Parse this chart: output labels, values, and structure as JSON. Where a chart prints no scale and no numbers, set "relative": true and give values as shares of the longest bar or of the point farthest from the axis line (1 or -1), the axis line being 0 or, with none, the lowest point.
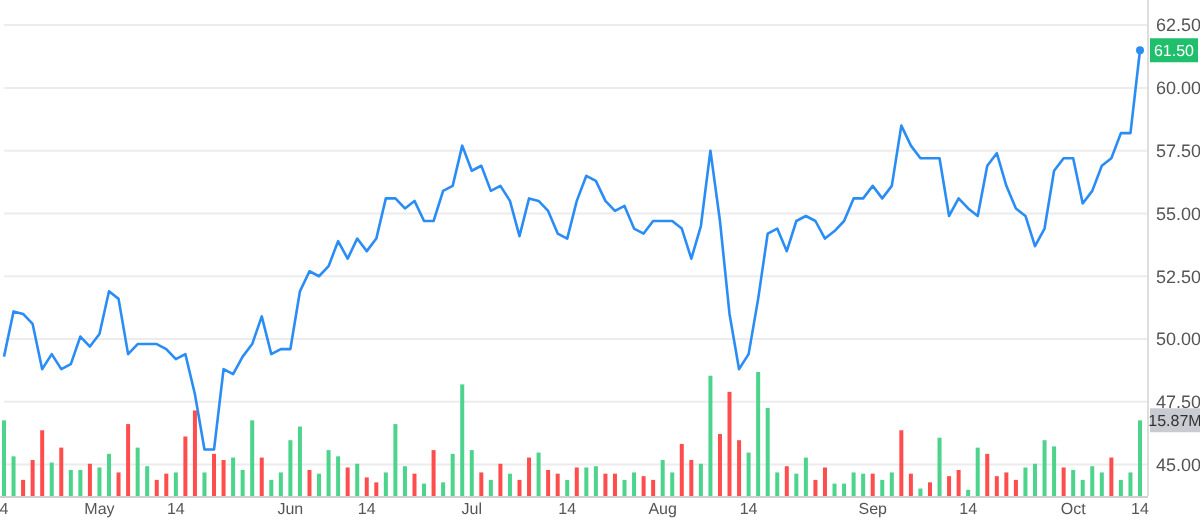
{
  "chart_data": [
    {
      "type": "line",
      "categories": [
        "4",
        null,
        null,
        null,
        null,
        null,
        null,
        null,
        null,
        null,
        "May",
        null,
        null,
        null,
        null,
        null,
        null,
        null,
        "14",
        null,
        null,
        null,
        null,
        null,
        null,
        null,
        null,
        null,
        null,
        null,
        "Jun",
        null,
        null,
        null,
        null,
        null,
        null,
        null,
        "14",
        null,
        null,
        null,
        null,
        null,
        null,
        null,
        null,
        null,
        null,
        "Jul",
        null,
        null,
        null,
        null,
        null,
        null,
        null,
        null,
        null,
        "14",
        null,
        null,
        null,
        null,
        null,
        null,
        null,
        null,
        null,
        "Aug",
        null,
        null,
        null,
        null,
        null,
        null,
        null,
        null,
        "14",
        null,
        null,
        null,
        null,
        null,
        null,
        null,
        null,
        null,
        null,
        null,
        null,
        "Sep",
        null,
        null,
        null,
        null,
        null,
        null,
        null,
        null,
        null,
        "14",
        null,
        null,
        null,
        null,
        null,
        null,
        null,
        null,
        null,
        null,
        "Oct",
        null,
        null,
        null,
        null,
        null,
        null,
        "14"
      ],
      "series": [
        {
          "color": "#2a8cf5",
          "values": [
            49.3,
            51.1,
            51.0,
            50.6,
            48.8,
            49.4,
            48.8,
            49.0,
            50.1,
            49.7,
            50.2,
            51.9,
            51.6,
            49.4,
            49.8,
            49.8,
            49.8,
            49.6,
            49.2,
            49.4,
            47.8,
            45.6,
            45.6,
            48.8,
            48.6,
            49.3,
            49.8,
            50.9,
            49.4,
            49.6,
            49.6,
            51.9,
            52.7,
            52.5,
            52.9,
            53.9,
            53.2,
            54.0,
            53.5,
            54.0,
            55.6,
            55.6,
            55.2,
            55.5,
            54.7,
            54.7,
            55.9,
            56.1,
            57.7,
            56.7,
            56.9,
            55.9,
            56.1,
            55.5,
            54.1,
            55.6,
            55.5,
            55.1,
            54.2,
            54.0,
            55.5,
            56.5,
            56.3,
            55.5,
            55.1,
            55.3,
            54.4,
            54.2,
            54.7,
            54.7,
            54.7,
            54.4,
            53.2,
            54.5,
            57.5,
            54.7,
            51.0,
            48.8,
            49.4,
            51.6,
            54.2,
            54.4,
            53.5,
            54.7,
            54.9,
            54.7,
            54.0,
            54.3,
            54.7,
            55.6,
            55.6,
            56.1,
            55.6,
            56.1,
            58.5,
            57.7,
            57.2,
            57.2,
            57.2,
            54.9,
            55.6,
            55.2,
            54.9,
            56.9,
            57.4,
            56.1,
            55.2,
            54.9,
            53.7,
            54.4,
            56.7,
            57.2,
            57.2,
            55.4,
            55.9,
            56.9,
            57.2,
            58.2,
            58.2,
            61.5
          ],
          "value_labels": [
            null,
            null,
            null,
            null,
            null,
            null,
            null,
            null,
            null,
            null,
            null,
            null,
            null,
            null,
            null,
            null,
            null,
            null,
            null,
            null,
            null,
            null,
            null,
            null,
            null,
            null,
            null,
            null,
            null,
            null,
            null,
            null,
            null,
            null,
            null,
            null,
            null,
            null,
            null,
            null,
            null,
            null,
            null,
            null,
            null,
            null,
            null,
            null,
            null,
            null,
            null,
            null,
            null,
            null,
            null,
            null,
            null,
            null,
            null,
            null,
            null,
            null,
            null,
            null,
            null,
            null,
            null,
            null,
            null,
            null,
            null,
            null,
            null,
            null,
            null,
            null,
            null,
            null,
            null,
            null,
            null,
            null,
            null,
            null,
            null,
            null,
            null,
            null,
            null,
            null,
            null,
            null,
            null,
            null,
            null,
            null,
            null,
            null,
            null,
            null,
            null,
            null,
            null,
            null,
            null,
            null,
            null,
            null,
            null,
            null,
            null,
            null,
            null,
            null,
            null,
            null,
            null,
            null,
            null,
            "61.50"
          ]
        }
      ],
      "ylim": [
        43.75,
        63.5
      ],
      "yticks": [
        {
          "value": 45,
          "label": "45.00"
        },
        {
          "value": 47.5,
          "label": "47.50"
        },
        {
          "value": 50,
          "label": "50.00"
        },
        {
          "value": 52.5,
          "label": "52.50"
        },
        {
          "value": 55,
          "label": "55.00"
        },
        {
          "value": 57.5,
          "label": "57.50"
        },
        {
          "value": 60,
          "label": "60.00"
        },
        {
          "value": 62.5,
          "label": "62.50"
        }
      ],
      "grid": "y",
      "marker": "none",
      "line_style": "solid"
    },
    {
      "type": "bar",
      "relative": true,
      "annotations": [
        "15.87M"
      ],
      "categories": [
        null,
        null,
        null,
        null,
        null,
        null,
        null,
        null,
        null,
        null,
        null,
        null,
        null,
        null,
        null,
        null,
        null,
        null,
        null,
        null,
        null,
        null,
        null,
        null,
        null,
        null,
        null,
        null,
        null,
        null,
        null,
        null,
        null,
        null,
        null,
        null,
        null,
        null,
        null,
        null,
        null,
        null,
        null,
        null,
        null,
        null,
        null,
        null,
        null,
        null,
        null,
        null,
        null,
        null,
        null,
        null,
        null,
        null,
        null,
        null,
        null,
        null,
        null,
        null,
        null,
        null,
        null,
        null,
        null,
        null,
        null,
        null,
        null,
        null,
        null,
        null,
        null,
        null,
        null,
        null,
        null,
        null,
        null,
        null,
        null,
        null,
        null,
        null,
        null,
        null,
        null,
        null,
        null,
        null,
        null,
        null,
        null,
        null,
        null,
        null,
        null,
        null,
        null,
        null,
        null,
        null,
        null,
        null,
        null,
        null,
        null,
        null,
        null,
        null,
        null,
        null,
        null,
        null,
        null,
        null
      ],
      "values": [
        0.61,
        0.32,
        0.13,
        0.29,
        0.53,
        0.27,
        0.39,
        0.21,
        0.21,
        0.26,
        0.23,
        0.34,
        0.19,
        0.58,
        0.39,
        0.24,
        0.13,
        0.18,
        0.19,
        0.48,
        0.69,
        0.19,
        0.34,
        0.29,
        0.31,
        0.21,
        0.61,
        0.31,
        0.13,
        0.19,
        0.45,
        0.56,
        0.21,
        0.18,
        0.37,
        0.32,
        0.23,
        0.26,
        0.15,
        0.11,
        0.19,
        0.58,
        0.24,
        0.18,
        0.1,
        0.37,
        0.11,
        0.34,
        0.9,
        0.37,
        0.19,
        0.13,
        0.26,
        0.18,
        0.13,
        0.31,
        0.35,
        0.21,
        0.18,
        0.13,
        0.23,
        0.23,
        0.24,
        0.18,
        0.18,
        0.13,
        0.19,
        0.16,
        0.13,
        0.29,
        0.19,
        0.42,
        0.29,
        0.26,
        0.97,
        0.5,
        0.84,
        0.45,
        0.35,
        1,
        0.71,
        0.19,
        0.24,
        0.18,
        0.31,
        0.13,
        0.23,
        0.1,
        0.1,
        0.19,
        0.18,
        0.18,
        0.13,
        0.19,
        0.53,
        0.18,
        0.06,
        0.11,
        0.47,
        0.16,
        0.21,
        0.05,
        0.39,
        0.34,
        0.16,
        0.19,
        0.13,
        0.23,
        0.26,
        0.45,
        0.4,
        0.23,
        0.21,
        0.13,
        0.24,
        0.19,
        0.31,
        0.13,
        0.19,
        0.61
      ],
      "colors": [
        "#4cd38c",
        "#4cd38c",
        "#ff4d4d",
        "#ff4d4d",
        "#ff4d4d",
        "#4cd38c",
        "#ff4d4d",
        "#4cd38c",
        "#4cd38c",
        "#ff4d4d",
        "#4cd38c",
        "#4cd38c",
        "#ff4d4d",
        "#ff4d4d",
        "#4cd38c",
        "#4cd38c",
        "#ff4d4d",
        "#ff4d4d",
        "#4cd38c",
        "#ff4d4d",
        "#ff4d4d",
        "#4cd38c",
        "#ff4d4d",
        "#ff4d4d",
        "#4cd38c",
        "#4cd38c",
        "#4cd38c",
        "#ff4d4d",
        "#4cd38c",
        "#4cd38c",
        "#4cd38c",
        "#4cd38c",
        "#ff4d4d",
        "#4cd38c",
        "#4cd38c",
        "#4cd38c",
        "#ff4d4d",
        "#4cd38c",
        "#ff4d4d",
        "#ff4d4d",
        "#4cd38c",
        "#4cd38c",
        "#4cd38c",
        "#ff4d4d",
        "#4cd38c",
        "#ff4d4d",
        "#4cd38c",
        "#4cd38c",
        "#4cd38c",
        "#4cd38c",
        "#ff4d4d",
        "#4cd38c",
        "#ff4d4d",
        "#4cd38c",
        "#ff4d4d",
        "#ff4d4d",
        "#4cd38c",
        "#ff4d4d",
        "#ff4d4d",
        "#4cd38c",
        "#ff4d4d",
        "#4cd38c",
        "#4cd38c",
        "#ff4d4d",
        "#ff4d4d",
        "#4cd38c",
        "#4cd38c",
        "#ff4d4d",
        "#ff4d4d",
        "#4cd38c",
        "#4cd38c",
        "#ff4d4d",
        "#ff4d4d",
        "#4cd38c",
        "#4cd38c",
        "#ff4d4d",
        "#ff4d4d",
        "#ff4d4d",
        "#4cd38c",
        "#4cd38c",
        "#4cd38c",
        "#4cd38c",
        "#ff4d4d",
        "#4cd38c",
        "#4cd38c",
        "#ff4d4d",
        "#ff4d4d",
        "#4cd38c",
        "#4cd38c",
        "#4cd38c",
        "#4cd38c",
        "#ff4d4d",
        "#4cd38c",
        "#4cd38c",
        "#ff4d4d",
        "#ff4d4d",
        "#4cd38c",
        "#ff4d4d",
        "#4cd38c",
        "#ff4d4d",
        "#ff4d4d",
        "#4cd38c",
        "#4cd38c",
        "#ff4d4d",
        "#ff4d4d",
        "#ff4d4d",
        "#ff4d4d",
        "#4cd38c",
        "#4cd38c",
        "#4cd38c",
        "#4cd38c",
        "#ff4d4d",
        "#4cd38c",
        "#4cd38c",
        "#4cd38c",
        "#4cd38c",
        "#ff4d4d",
        "#4cd38c",
        "#4cd38c",
        "#4cd38c"
      ]
    }
  ]
}
